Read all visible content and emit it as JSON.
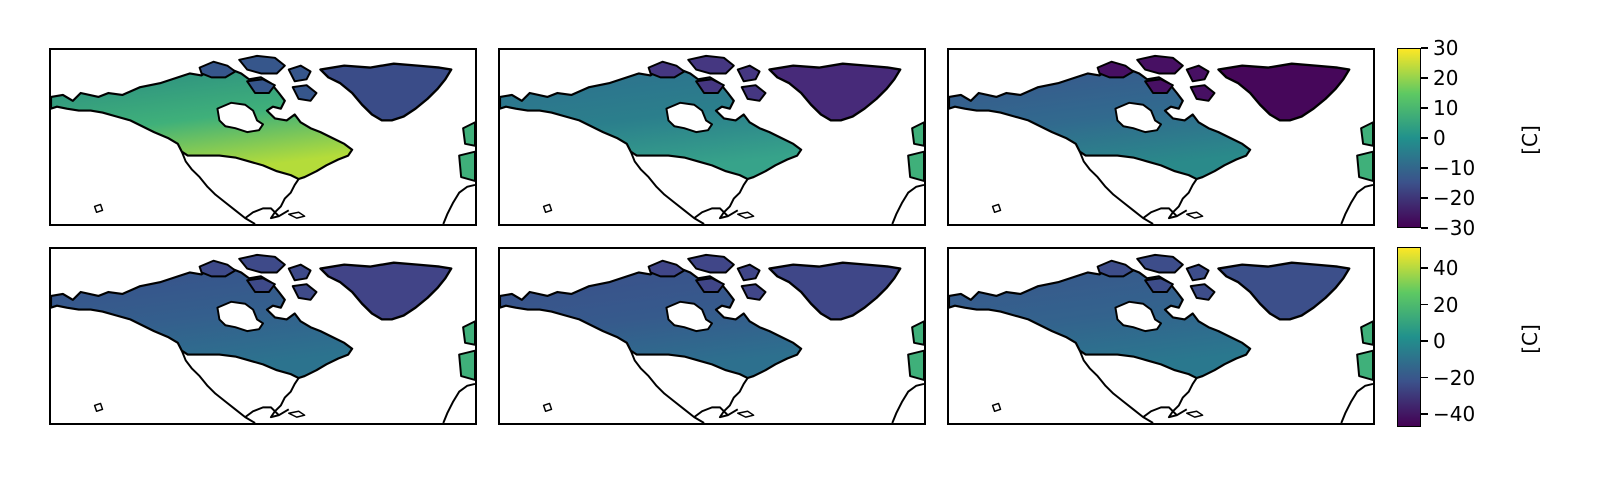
{
  "colorbars": [
    {
      "ticks": [
        "30",
        "20",
        "10",
        "0",
        "−10",
        "−20",
        "−30"
      ],
      "unit": "[C]"
    },
    {
      "ticks": [
        "40",
        "20",
        "0",
        "−20",
        "−40"
      ],
      "unit": "[C]"
    }
  ],
  "colormap": {
    "name": "viridis",
    "stops": [
      "#440154",
      "#3b528b",
      "#21918c",
      "#5ec962",
      "#fde725"
    ]
  },
  "panels": [
    {
      "id": "r1c1",
      "land_top": "#2a8a82",
      "land_mid": "#3fb07a",
      "land_south": "#b4dc3a",
      "greenland": "#3a4c88",
      "arctic": "#36568b"
    },
    {
      "id": "r1c2",
      "land_top": "#2e6f8e",
      "land_mid": "#2b7f8c",
      "land_south": "#37a38a",
      "greenland": "#472a79",
      "arctic": "#453781"
    },
    {
      "id": "r1c3",
      "land_top": "#39568c",
      "land_mid": "#316a8e",
      "land_south": "#2a8a8a",
      "greenland": "#46075a",
      "arctic": "#471063"
    },
    {
      "id": "r2c1",
      "land_top": "#39508a",
      "land_mid": "#345f8d",
      "land_south": "#2c738e",
      "greenland": "#414487",
      "arctic": "#3e4a89"
    },
    {
      "id": "r2c2",
      "land_top": "#3b4f8a",
      "land_mid": "#365a8c",
      "land_south": "#2d708e",
      "greenland": "#3f4788",
      "arctic": "#404688"
    },
    {
      "id": "r2c3",
      "land_top": "#39568c",
      "land_mid": "#33638d",
      "land_south": "#2a788e",
      "greenland": "#3c4f8a",
      "arctic": "#3d4d8a"
    }
  ]
}
